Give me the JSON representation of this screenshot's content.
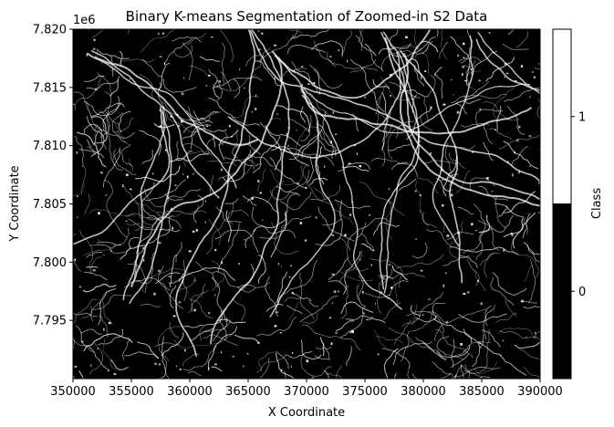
{
  "chart_data": {
    "type": "heatmap",
    "title": "Binary K-means Segmentation of Zoomed-in S2 Data",
    "xlabel": "X Coordinate",
    "ylabel": "Y Coordinate",
    "y_offset_label": "1e6",
    "xlim": [
      350000,
      390000
    ],
    "ylim": [
      7790000,
      7820000
    ],
    "x_ticks": [
      350000,
      355000,
      360000,
      365000,
      370000,
      375000,
      380000,
      385000,
      390000
    ],
    "y_ticks": [
      7.795,
      7.8,
      7.805,
      7.81,
      7.815,
      7.82
    ],
    "x_tick_labels": [
      "350000",
      "355000",
      "360000",
      "365000",
      "370000",
      "375000",
      "380000",
      "385000",
      "390000"
    ],
    "y_tick_labels": [
      "7.795",
      "7.800",
      "7.805",
      "7.810",
      "7.815",
      "7.820"
    ],
    "colorbar": {
      "label": "Class",
      "classes": [
        {
          "value": 0,
          "label": "0",
          "color": "#000000"
        },
        {
          "value": 1,
          "label": "1",
          "color": "#ffffff"
        }
      ]
    },
    "colors": {
      "class_0": "#000000",
      "class_1": "#ffffff"
    }
  }
}
